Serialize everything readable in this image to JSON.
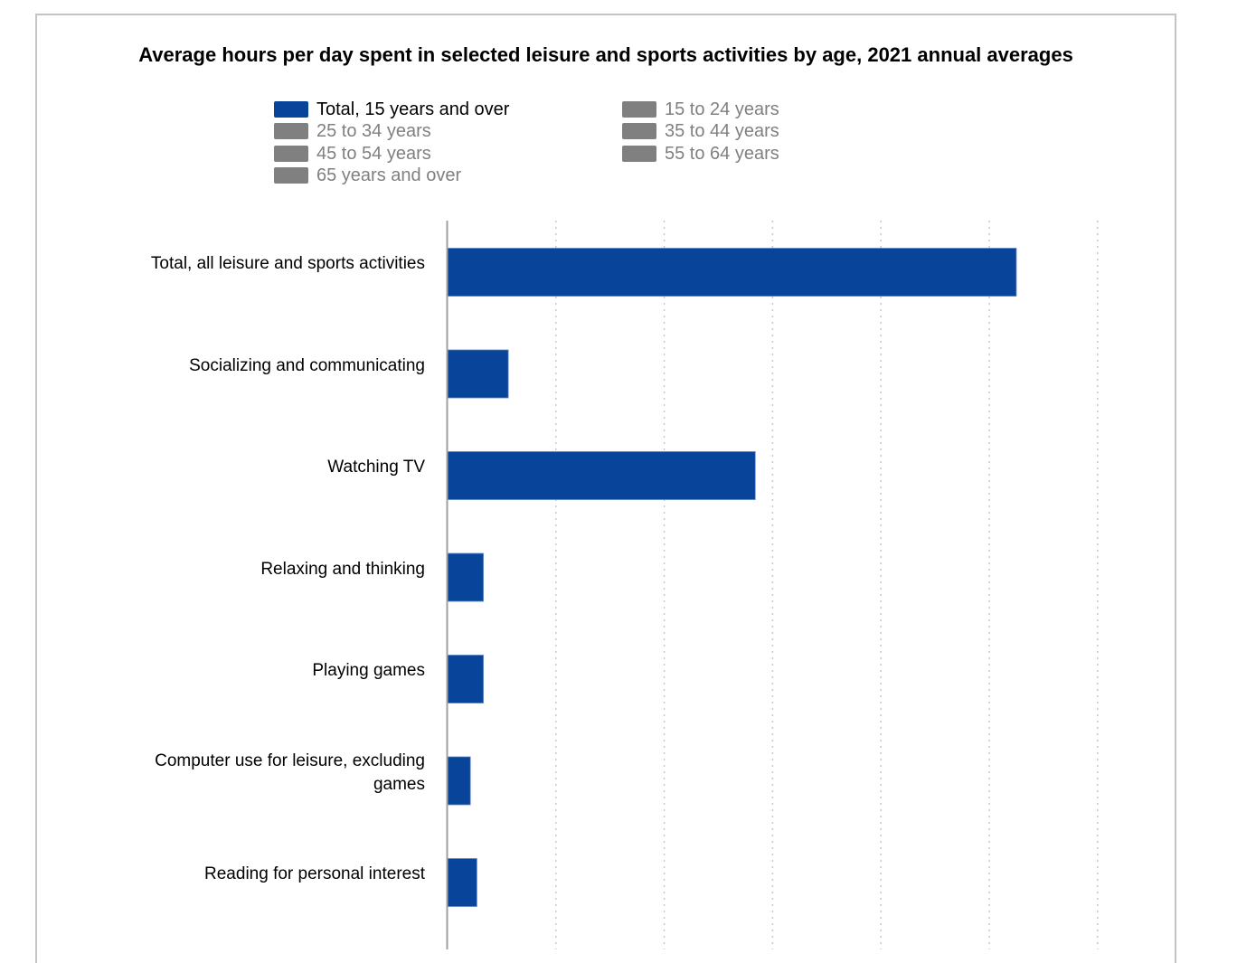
{
  "chart_data": {
    "type": "bar",
    "orientation": "horizontal",
    "title": "Average hours per day spent in selected leisure and sports activities by age, 2021 annual averages",
    "xlabel": "",
    "ylabel": "",
    "xlim": [
      0,
      6
    ],
    "grid": true,
    "legend_position": "top",
    "categories": [
      "Total, all leisure and sports activities",
      "Socializing and communicating",
      "Watching TV",
      "Relaxing and thinking",
      "Playing games",
      "Computer use for leisure, excluding games",
      "Reading for personal interest"
    ],
    "series": [
      {
        "name": "Total, 15 years and over",
        "active": true,
        "color": "#08449a",
        "values": [
          5.25,
          0.56,
          2.84,
          0.33,
          0.33,
          0.21,
          0.27
        ]
      }
    ],
    "legend": [
      {
        "label": "Total, 15 years and over",
        "active": true,
        "color": "#08449a"
      },
      {
        "label": "15 to 24 years",
        "active": false,
        "color": "#808080"
      },
      {
        "label": "25 to 34 years",
        "active": false,
        "color": "#808080"
      },
      {
        "label": "35 to 44 years",
        "active": false,
        "color": "#808080"
      },
      {
        "label": "45 to 54 years",
        "active": false,
        "color": "#808080"
      },
      {
        "label": "55 to 64 years",
        "active": false,
        "color": "#808080"
      },
      {
        "label": "65 years and over",
        "active": false,
        "color": "#808080"
      }
    ]
  }
}
